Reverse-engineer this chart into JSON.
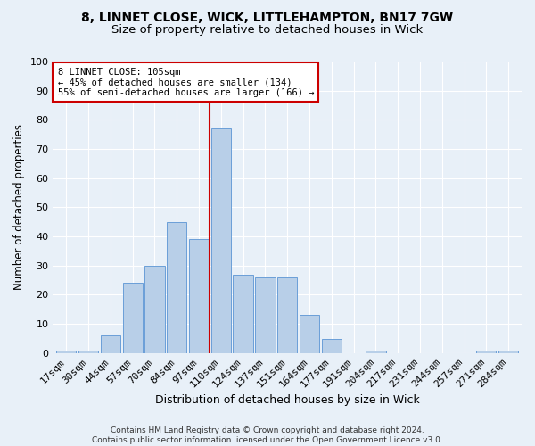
{
  "title1": "8, LINNET CLOSE, WICK, LITTLEHAMPTON, BN17 7GW",
  "title2": "Size of property relative to detached houses in Wick",
  "xlabel": "Distribution of detached houses by size in Wick",
  "ylabel": "Number of detached properties",
  "bar_labels": [
    "17sqm",
    "30sqm",
    "44sqm",
    "57sqm",
    "70sqm",
    "84sqm",
    "97sqm",
    "110sqm",
    "124sqm",
    "137sqm",
    "151sqm",
    "164sqm",
    "177sqm",
    "191sqm",
    "204sqm",
    "217sqm",
    "231sqm",
    "244sqm",
    "257sqm",
    "271sqm",
    "284sqm"
  ],
  "bar_values": [
    1,
    1,
    6,
    24,
    30,
    45,
    39,
    77,
    27,
    26,
    26,
    13,
    5,
    0,
    1,
    0,
    0,
    0,
    0,
    1,
    1
  ],
  "bar_color": "#b8cfe8",
  "bar_edge_color": "#6a9fd8",
  "vline_color": "#cc0000",
  "annotation_text": "8 LINNET CLOSE: 105sqm\n← 45% of detached houses are smaller (134)\n55% of semi-detached houses are larger (166) →",
  "annotation_box_facecolor": "#ffffff",
  "annotation_box_edgecolor": "#cc0000",
  "bg_color": "#e8f0f8",
  "plot_bg_color": "#e8f0f8",
  "footer": "Contains HM Land Registry data © Crown copyright and database right 2024.\nContains public sector information licensed under the Open Government Licence v3.0.",
  "ylim": [
    0,
    100
  ],
  "title1_fontsize": 10,
  "title2_fontsize": 9.5,
  "xlabel_fontsize": 9,
  "ylabel_fontsize": 8.5,
  "tick_fontsize": 8,
  "footer_fontsize": 6.5
}
